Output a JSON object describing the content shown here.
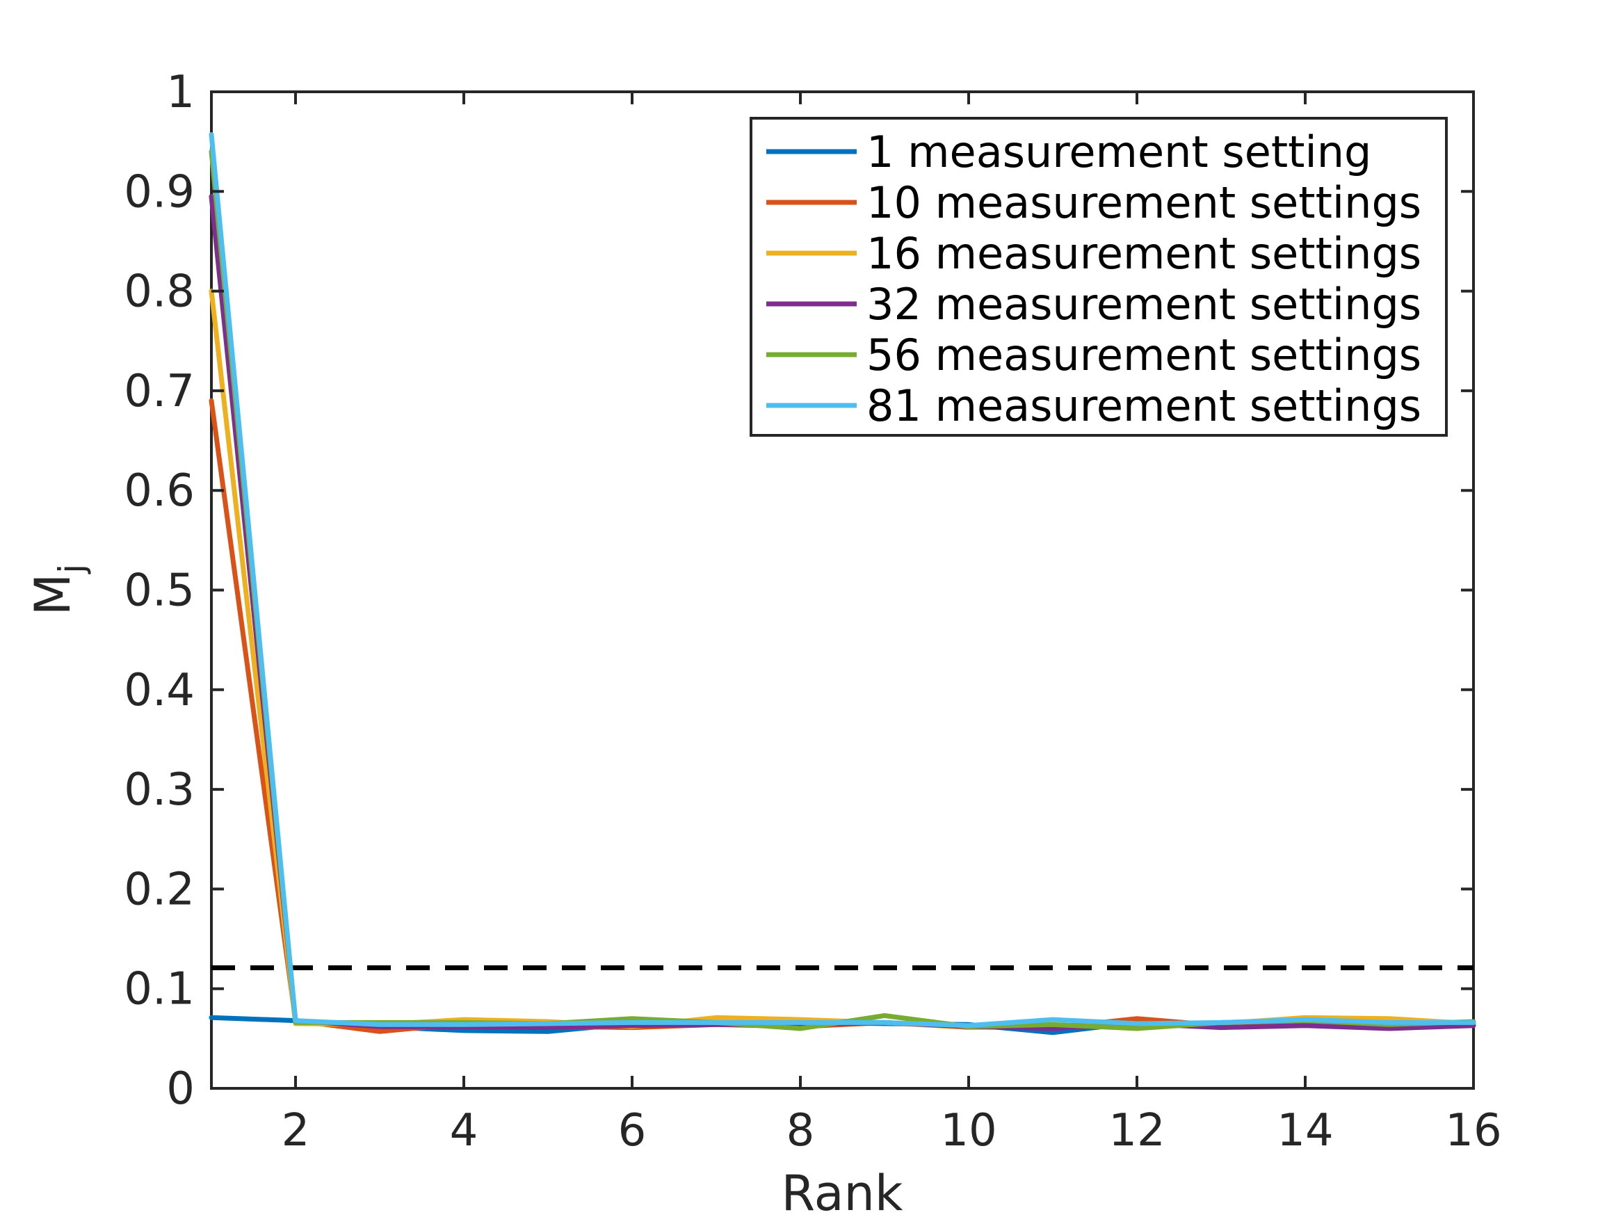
{
  "chart_data": {
    "type": "line",
    "xlabel": "Rank",
    "ylabel": "M",
    "ylabel_subscript": "j",
    "xlim": [
      1,
      16
    ],
    "ylim": [
      0,
      1
    ],
    "xticks": [
      2,
      4,
      6,
      8,
      10,
      12,
      14,
      16
    ],
    "yticks": [
      0,
      0.1,
      0.2,
      0.3,
      0.4,
      0.5,
      0.6,
      0.7,
      0.8,
      0.9,
      1
    ],
    "ytick_labels": [
      "0",
      "0.1",
      "0.2",
      "0.3",
      "0.4",
      "0.5",
      "0.6",
      "0.7",
      "0.8",
      "0.9",
      "1"
    ],
    "xtick_labels": [
      "2",
      "4",
      "6",
      "8",
      "10",
      "12",
      "14",
      "16"
    ],
    "grid": false,
    "legend_position": "top-right",
    "x": [
      1,
      2,
      3,
      4,
      5,
      6,
      7,
      8,
      9,
      10,
      11,
      12,
      13,
      14,
      15,
      16
    ],
    "series": [
      {
        "name": "1 measurement setting",
        "color": "#0072BD",
        "values": [
          0.071,
          0.068,
          0.062,
          0.058,
          0.057,
          0.065,
          0.066,
          0.066,
          0.065,
          0.064,
          0.056,
          0.066,
          0.065,
          0.066,
          0.064,
          0.065
        ]
      },
      {
        "name": "10 measurement settings",
        "color": "#D95319",
        "values": [
          0.69,
          0.068,
          0.057,
          0.065,
          0.062,
          0.061,
          0.064,
          0.062,
          0.066,
          0.062,
          0.061,
          0.07,
          0.063,
          0.068,
          0.066,
          0.066
        ]
      },
      {
        "name": "16 measurement settings",
        "color": "#EDB120",
        "values": [
          0.8,
          0.065,
          0.064,
          0.069,
          0.067,
          0.062,
          0.071,
          0.069,
          0.066,
          0.061,
          0.063,
          0.062,
          0.065,
          0.071,
          0.07,
          0.065
        ]
      },
      {
        "name": "32 measurement settings",
        "color": "#7E2F8E",
        "values": [
          0.895,
          0.068,
          0.062,
          0.062,
          0.061,
          0.063,
          0.064,
          0.064,
          0.066,
          0.062,
          0.06,
          0.065,
          0.061,
          0.063,
          0.06,
          0.063
        ]
      },
      {
        "name": "56 measurement settings",
        "color": "#77AC30",
        "values": [
          0.94,
          0.066,
          0.066,
          0.066,
          0.065,
          0.07,
          0.066,
          0.06,
          0.073,
          0.062,
          0.064,
          0.06,
          0.066,
          0.068,
          0.064,
          0.067
        ]
      },
      {
        "name": "81 measurement settings",
        "color": "#4DBEEE",
        "values": [
          0.957,
          0.068,
          0.064,
          0.064,
          0.065,
          0.066,
          0.066,
          0.066,
          0.066,
          0.063,
          0.069,
          0.065,
          0.066,
          0.069,
          0.066,
          0.066
        ]
      }
    ],
    "threshold": {
      "value": 0.121,
      "style": "dashed",
      "color": "#000000"
    }
  }
}
